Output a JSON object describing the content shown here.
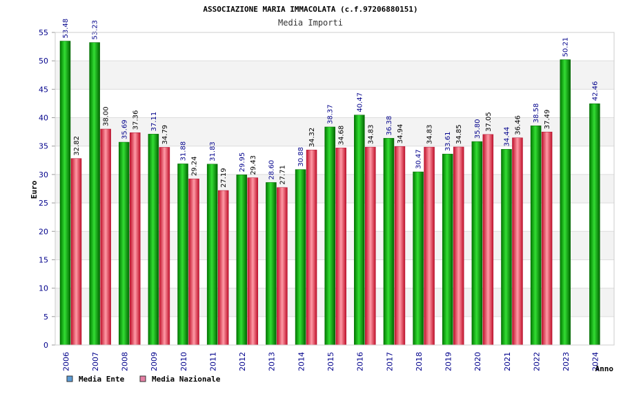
{
  "chart_data": {
    "type": "bar",
    "title": "ASSOCIAZIONE MARIA IMMACOLATA (c.f.97206880151)",
    "subtitle": "Media Importi",
    "xlabel": "Anno",
    "ylabel": "Euro",
    "ylim": [
      0,
      55
    ],
    "yticks": [
      "0",
      "5",
      "10",
      "15",
      "20",
      "25",
      "30",
      "35",
      "40",
      "45",
      "50",
      "55"
    ],
    "grid": true,
    "legend_position": "bottom-left",
    "categories": [
      "2006",
      "2007",
      "2008",
      "2009",
      "2010",
      "2011",
      "2012",
      "2013",
      "2014",
      "2015",
      "2016",
      "2017",
      "2018",
      "2019",
      "2020",
      "2021",
      "2022",
      "2023",
      "2024"
    ],
    "series": [
      {
        "name": "Media Ente",
        "legend_color": "#5b9bd5",
        "bar_color": "#22aa22",
        "label_color": "#00008b",
        "values": [
          53.48,
          53.23,
          35.69,
          37.11,
          31.88,
          31.83,
          29.95,
          28.6,
          30.88,
          38.37,
          40.47,
          36.38,
          30.47,
          33.61,
          35.8,
          34.44,
          38.58,
          50.21,
          42.46
        ],
        "labels": [
          "53.48",
          "53.23",
          "35.69",
          "37.11",
          "31.88",
          "31.83",
          "29.95",
          "28.60",
          "30.88",
          "38.37",
          "40.47",
          "36.38",
          "30.47",
          "33.61",
          "35.80",
          "34.44",
          "38.58",
          "50.21",
          "42.46"
        ]
      },
      {
        "name": "Media Nazionale",
        "legend_color": "#e57fa4",
        "bar_color": "#e03040",
        "label_color": "#000000",
        "values": [
          32.82,
          38.0,
          37.36,
          34.79,
          29.24,
          27.19,
          29.43,
          27.71,
          34.32,
          34.68,
          34.83,
          34.94,
          34.83,
          34.85,
          37.05,
          36.46,
          37.49,
          null,
          null
        ],
        "labels": [
          "32.82",
          "38.00",
          "37.36",
          "34.79",
          "29.24",
          "27.19",
          "29.43",
          "27.71",
          "34.32",
          "34.68",
          "34.83",
          "34.94",
          "34.83",
          "34.85",
          "37.05",
          "36.46",
          "37.49",
          "",
          ""
        ]
      }
    ]
  }
}
